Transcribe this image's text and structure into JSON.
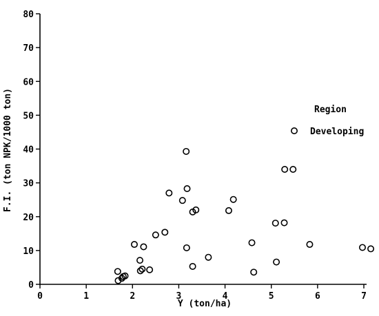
{
  "chart_data": {
    "type": "scatter",
    "xlabel": "Y (ton/ha)",
    "ylabel": "F.I. (ton NPK/1000 ton)",
    "xlim": [
      0,
      7
    ],
    "ylim": [
      0,
      80
    ],
    "x_ticks": [
      "0",
      "1",
      "2",
      "3",
      "4",
      "5",
      "6",
      "7"
    ],
    "y_ticks": [
      "0",
      "10",
      "20",
      "30",
      "40",
      "50",
      "60",
      "70",
      "80"
    ],
    "grid": false,
    "legend": {
      "title": "Region",
      "placement": "right"
    },
    "marker": "open-circle",
    "series": [
      {
        "name": "Developing",
        "points": [
          [
            1.68,
            3.8
          ],
          [
            1.69,
            1.1
          ],
          [
            1.77,
            1.8
          ],
          [
            1.8,
            2.3
          ],
          [
            1.84,
            2.5
          ],
          [
            2.04,
            11.8
          ],
          [
            2.16,
            7.1
          ],
          [
            2.17,
            4.0
          ],
          [
            2.21,
            4.5
          ],
          [
            2.24,
            11.1
          ],
          [
            2.37,
            4.3
          ],
          [
            2.5,
            14.6
          ],
          [
            2.7,
            15.4
          ],
          [
            2.79,
            27.0
          ],
          [
            3.08,
            24.8
          ],
          [
            3.16,
            39.3
          ],
          [
            3.18,
            28.3
          ],
          [
            3.17,
            10.8
          ],
          [
            3.3,
            21.4
          ],
          [
            3.37,
            22.0
          ],
          [
            3.3,
            5.3
          ],
          [
            3.64,
            8.0
          ],
          [
            4.08,
            21.8
          ],
          [
            4.18,
            25.1
          ],
          [
            4.58,
            12.3
          ],
          [
            4.62,
            3.6
          ],
          [
            5.09,
            18.1
          ],
          [
            5.11,
            6.6
          ],
          [
            5.28,
            18.2
          ],
          [
            5.29,
            34.0
          ],
          [
            5.47,
            34.0
          ],
          [
            5.83,
            11.8
          ],
          [
            6.97,
            10.9
          ],
          [
            7.15,
            10.5
          ]
        ]
      }
    ]
  }
}
